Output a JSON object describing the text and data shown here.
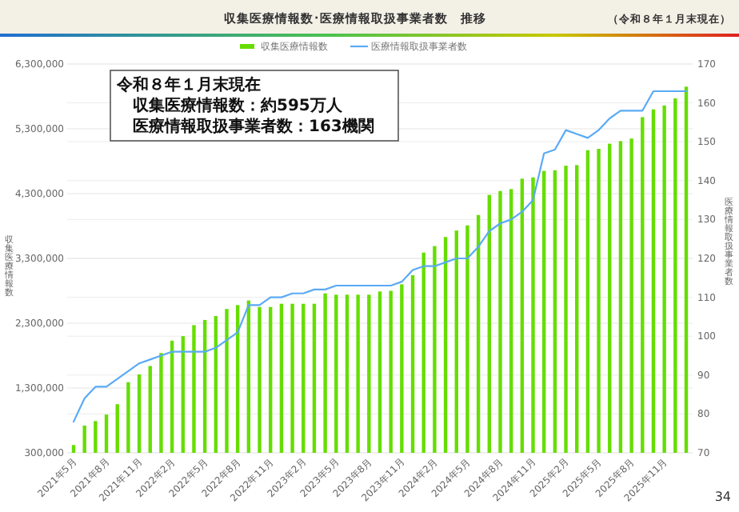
{
  "chart_data": {
    "type": "bar",
    "title": "収集医療情報数･医療情報取扱事業者数　推移",
    "subtitle": "（令和８年１月末現在）",
    "ylabel": "収集医療情報数",
    "y2label": "医療情報取扱事業者数",
    "categories": [
      "2021年5月",
      null,
      null,
      "2021年8月",
      null,
      null,
      "2021年11月",
      null,
      null,
      "2022年2月",
      null,
      null,
      "2022年5月",
      null,
      null,
      "2022年8月",
      null,
      null,
      "2022年11月",
      null,
      null,
      "2023年2月",
      null,
      null,
      "2023年5月",
      null,
      null,
      "2023年8月",
      null,
      null,
      "2023年11月",
      null,
      null,
      "2024年2月",
      null,
      null,
      "2024年5月",
      null,
      null,
      "2024年8月",
      null,
      null,
      "2024年11月",
      null,
      null,
      "2025年2月",
      null,
      null,
      "2025年5月",
      null,
      null,
      "2025年8月",
      null,
      null,
      "2025年11月",
      null,
      null
    ],
    "series": [
      {
        "name": "収集医療情報数",
        "color": "#66dd00",
        "values": [
          420000,
          720000,
          790000,
          890000,
          1050000,
          1390000,
          1510000,
          1640000,
          1840000,
          2030000,
          2100000,
          2270000,
          2350000,
          2410000,
          2520000,
          2580000,
          2650000,
          2550000,
          2550000,
          2600000,
          2600000,
          2600000,
          2600000,
          2760000,
          2740000,
          2740000,
          2740000,
          2740000,
          2790000,
          2800000,
          2900000,
          3040000,
          3390000,
          3490000,
          3630000,
          3730000,
          3810000,
          3970000,
          4280000,
          4340000,
          4370000,
          4530000,
          4550000,
          4650000,
          4660000,
          4730000,
          4740000,
          4970000,
          4990000,
          5070000,
          5110000,
          5150000,
          5480000,
          5600000,
          5660000,
          5770000,
          5950000
        ]
      },
      {
        "name": "医療情報取扱事業者数",
        "type": "line",
        "axis": "y2",
        "color": "#5aaaf5",
        "values": [
          78,
          84,
          87,
          87,
          89,
          91,
          93,
          94,
          95,
          96,
          96,
          96,
          96,
          97,
          99,
          101,
          108,
          108,
          110,
          110,
          111,
          111,
          112,
          112,
          113,
          113,
          113,
          113,
          113,
          113,
          114,
          117,
          118,
          118,
          119,
          120,
          120,
          123,
          127,
          129,
          130,
          132,
          135,
          147,
          148,
          153,
          152,
          151,
          153,
          156,
          158,
          158,
          158,
          163,
          163,
          163,
          163
        ]
      }
    ],
    "ylim": [
      300000,
      6300000
    ],
    "yticks": [
      {
        "value": 300000,
        "label": "300,000"
      },
      {
        "value": 1300000,
        "label": "1,300,000"
      },
      {
        "value": 2300000,
        "label": "2,300,000"
      },
      {
        "value": 3300000,
        "label": "3,300,000"
      },
      {
        "value": 4300000,
        "label": "4,300,000"
      },
      {
        "value": 5300000,
        "label": "5,300,000"
      },
      {
        "value": 6300000,
        "label": "6,300,000"
      }
    ],
    "y2lim": [
      70,
      170
    ],
    "y2ticks": [
      70,
      80,
      90,
      100,
      110,
      120,
      130,
      140,
      150,
      160,
      170
    ],
    "grid": true,
    "legend": "top",
    "annotations": [
      "令和８年１月末現在",
      "収集医療情報数：約595万人",
      "医療情報取扱事業者数：163機関",
      "34"
    ]
  }
}
